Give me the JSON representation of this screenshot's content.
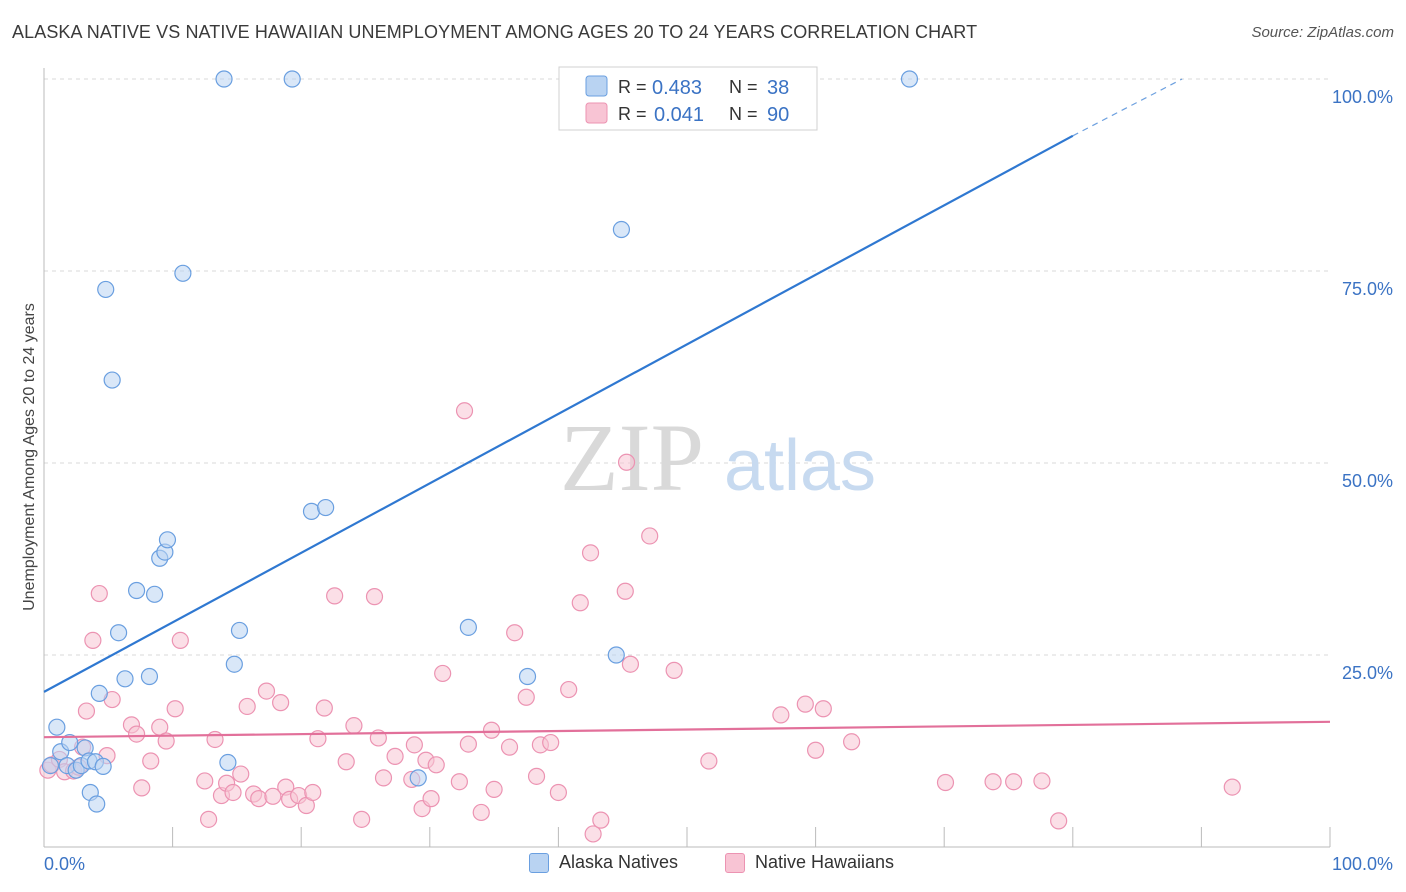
{
  "title": "ALASKA NATIVE VS NATIVE HAWAIIAN UNEMPLOYMENT AMONG AGES 20 TO 24 YEARS CORRELATION CHART",
  "source": "Source: ZipAtlas.com",
  "watermark": {
    "zip": "ZIP",
    "atlas": "atlas"
  },
  "colors": {
    "blue": "#2f78d1",
    "blue_fill": "#b9d3f2",
    "blue_stroke": "#6a9fe0",
    "pink": "#e2709a",
    "pink_fill": "#f8c4d4",
    "pink_stroke": "#ec93b2",
    "axis_text": "#3b73c4",
    "grid": "#d8d8d8"
  },
  "legend_top": [
    {
      "r_label": "R =",
      "r_value": "0.483",
      "n_label": "N =",
      "n_value": "38"
    },
    {
      "r_label": "R =",
      "r_value": "0.041",
      "n_label": "N =",
      "n_value": "90"
    }
  ],
  "chart_data": {
    "type": "scatter",
    "xlabel": "",
    "ylabel": "Unemployment Among Ages 20 to 24 years",
    "xlim": [
      0,
      100
    ],
    "ylim": [
      0,
      100
    ],
    "x_tick_labels": [
      "0.0%",
      "100.0%"
    ],
    "y_tick_labels": [
      "25.0%",
      "50.0%",
      "75.0%",
      "100.0%"
    ],
    "y_ticks": [
      25,
      50,
      75,
      100
    ],
    "grid": true,
    "legend": "bottom-center",
    "series": [
      {
        "name": "Alaska Natives",
        "color": "blue",
        "points": [
          [
            0.5,
            10.6
          ],
          [
            1.0,
            15.6
          ],
          [
            1.3,
            12.4
          ],
          [
            1.8,
            10.6
          ],
          [
            2.0,
            13.6
          ],
          [
            2.5,
            10.0
          ],
          [
            2.9,
            10.6
          ],
          [
            3.2,
            12.9
          ],
          [
            3.5,
            11.2
          ],
          [
            3.6,
            7.1
          ],
          [
            4.0,
            11.1
          ],
          [
            4.1,
            5.6
          ],
          [
            4.3,
            20.0
          ],
          [
            4.6,
            10.5
          ],
          [
            4.8,
            72.6
          ],
          [
            5.3,
            60.8
          ],
          [
            5.8,
            27.9
          ],
          [
            6.3,
            21.9
          ],
          [
            7.2,
            33.4
          ],
          [
            8.2,
            22.2
          ],
          [
            8.6,
            32.9
          ],
          [
            9.0,
            37.6
          ],
          [
            9.4,
            38.4
          ],
          [
            9.6,
            40.0
          ],
          [
            10.8,
            74.7
          ],
          [
            14.0,
            100.0
          ],
          [
            14.3,
            11.0
          ],
          [
            14.8,
            23.8
          ],
          [
            15.2,
            28.2
          ],
          [
            19.3,
            100.0
          ],
          [
            20.8,
            43.7
          ],
          [
            21.9,
            44.2
          ],
          [
            29.1,
            9.0
          ],
          [
            33.0,
            28.6
          ],
          [
            37.6,
            22.2
          ],
          [
            44.9,
            80.4
          ],
          [
            44.5,
            25.0
          ],
          [
            67.3,
            100.0
          ]
        ],
        "trend": {
          "start": [
            0,
            20.2
          ],
          "end": [
            80,
            92.6
          ],
          "dashed_to": [
            88.5,
            100.0
          ]
        }
      },
      {
        "name": "Native Hawaiians",
        "color": "pink",
        "points": [
          [
            0.3,
            10.0
          ],
          [
            0.6,
            10.7
          ],
          [
            1.2,
            11.4
          ],
          [
            1.6,
            9.8
          ],
          [
            2.3,
            9.9
          ],
          [
            2.7,
            10.4
          ],
          [
            3.0,
            13.0
          ],
          [
            3.3,
            17.7
          ],
          [
            3.8,
            26.9
          ],
          [
            4.3,
            33.0
          ],
          [
            4.9,
            11.9
          ],
          [
            5.3,
            19.2
          ],
          [
            6.8,
            15.9
          ],
          [
            7.2,
            14.7
          ],
          [
            7.6,
            7.7
          ],
          [
            8.3,
            11.2
          ],
          [
            9.0,
            15.6
          ],
          [
            9.5,
            13.8
          ],
          [
            10.2,
            18.0
          ],
          [
            10.6,
            26.9
          ],
          [
            12.5,
            8.6
          ],
          [
            12.8,
            3.6
          ],
          [
            13.3,
            14.0
          ],
          [
            13.8,
            6.7
          ],
          [
            14.2,
            8.3
          ],
          [
            14.7,
            7.1
          ],
          [
            15.3,
            9.5
          ],
          [
            15.8,
            18.3
          ],
          [
            16.3,
            6.9
          ],
          [
            16.7,
            6.3
          ],
          [
            17.3,
            20.3
          ],
          [
            17.8,
            6.6
          ],
          [
            18.4,
            18.8
          ],
          [
            18.8,
            7.8
          ],
          [
            19.1,
            6.2
          ],
          [
            19.8,
            6.7
          ],
          [
            20.4,
            5.4
          ],
          [
            20.9,
            7.1
          ],
          [
            21.3,
            14.1
          ],
          [
            21.8,
            18.1
          ],
          [
            22.6,
            32.7
          ],
          [
            23.5,
            11.1
          ],
          [
            24.1,
            15.8
          ],
          [
            24.7,
            3.6
          ],
          [
            25.7,
            32.6
          ],
          [
            26.0,
            14.2
          ],
          [
            26.4,
            9.0
          ],
          [
            27.3,
            11.8
          ],
          [
            28.6,
            8.8
          ],
          [
            28.8,
            13.3
          ],
          [
            29.4,
            5.0
          ],
          [
            29.7,
            11.3
          ],
          [
            30.1,
            6.3
          ],
          [
            30.5,
            10.7
          ],
          [
            31.0,
            22.6
          ],
          [
            32.3,
            8.5
          ],
          [
            32.7,
            56.8
          ],
          [
            33.0,
            13.4
          ],
          [
            34.0,
            4.5
          ],
          [
            34.8,
            15.2
          ],
          [
            35.0,
            7.5
          ],
          [
            36.2,
            13.0
          ],
          [
            36.6,
            27.9
          ],
          [
            37.5,
            19.5
          ],
          [
            38.3,
            9.2
          ],
          [
            38.6,
            13.3
          ],
          [
            39.4,
            13.6
          ],
          [
            40.0,
            7.1
          ],
          [
            40.8,
            20.5
          ],
          [
            41.7,
            31.8
          ],
          [
            42.5,
            38.3
          ],
          [
            42.7,
            1.7
          ],
          [
            43.3,
            3.5
          ],
          [
            45.2,
            33.3
          ],
          [
            45.6,
            23.8
          ],
          [
            47.1,
            40.5
          ],
          [
            49.0,
            23.0
          ],
          [
            51.7,
            11.2
          ],
          [
            57.3,
            17.2
          ],
          [
            59.2,
            18.6
          ],
          [
            60.0,
            12.6
          ],
          [
            60.6,
            18.0
          ],
          [
            62.8,
            13.7
          ],
          [
            70.1,
            8.4
          ],
          [
            73.8,
            8.5
          ],
          [
            75.4,
            8.5
          ],
          [
            77.6,
            8.6
          ],
          [
            78.9,
            3.4
          ],
          [
            92.4,
            7.8
          ],
          [
            45.3,
            50.1
          ]
        ],
        "trend": {
          "start": [
            0,
            14.3
          ],
          "end": [
            100,
            16.3
          ]
        }
      }
    ]
  }
}
